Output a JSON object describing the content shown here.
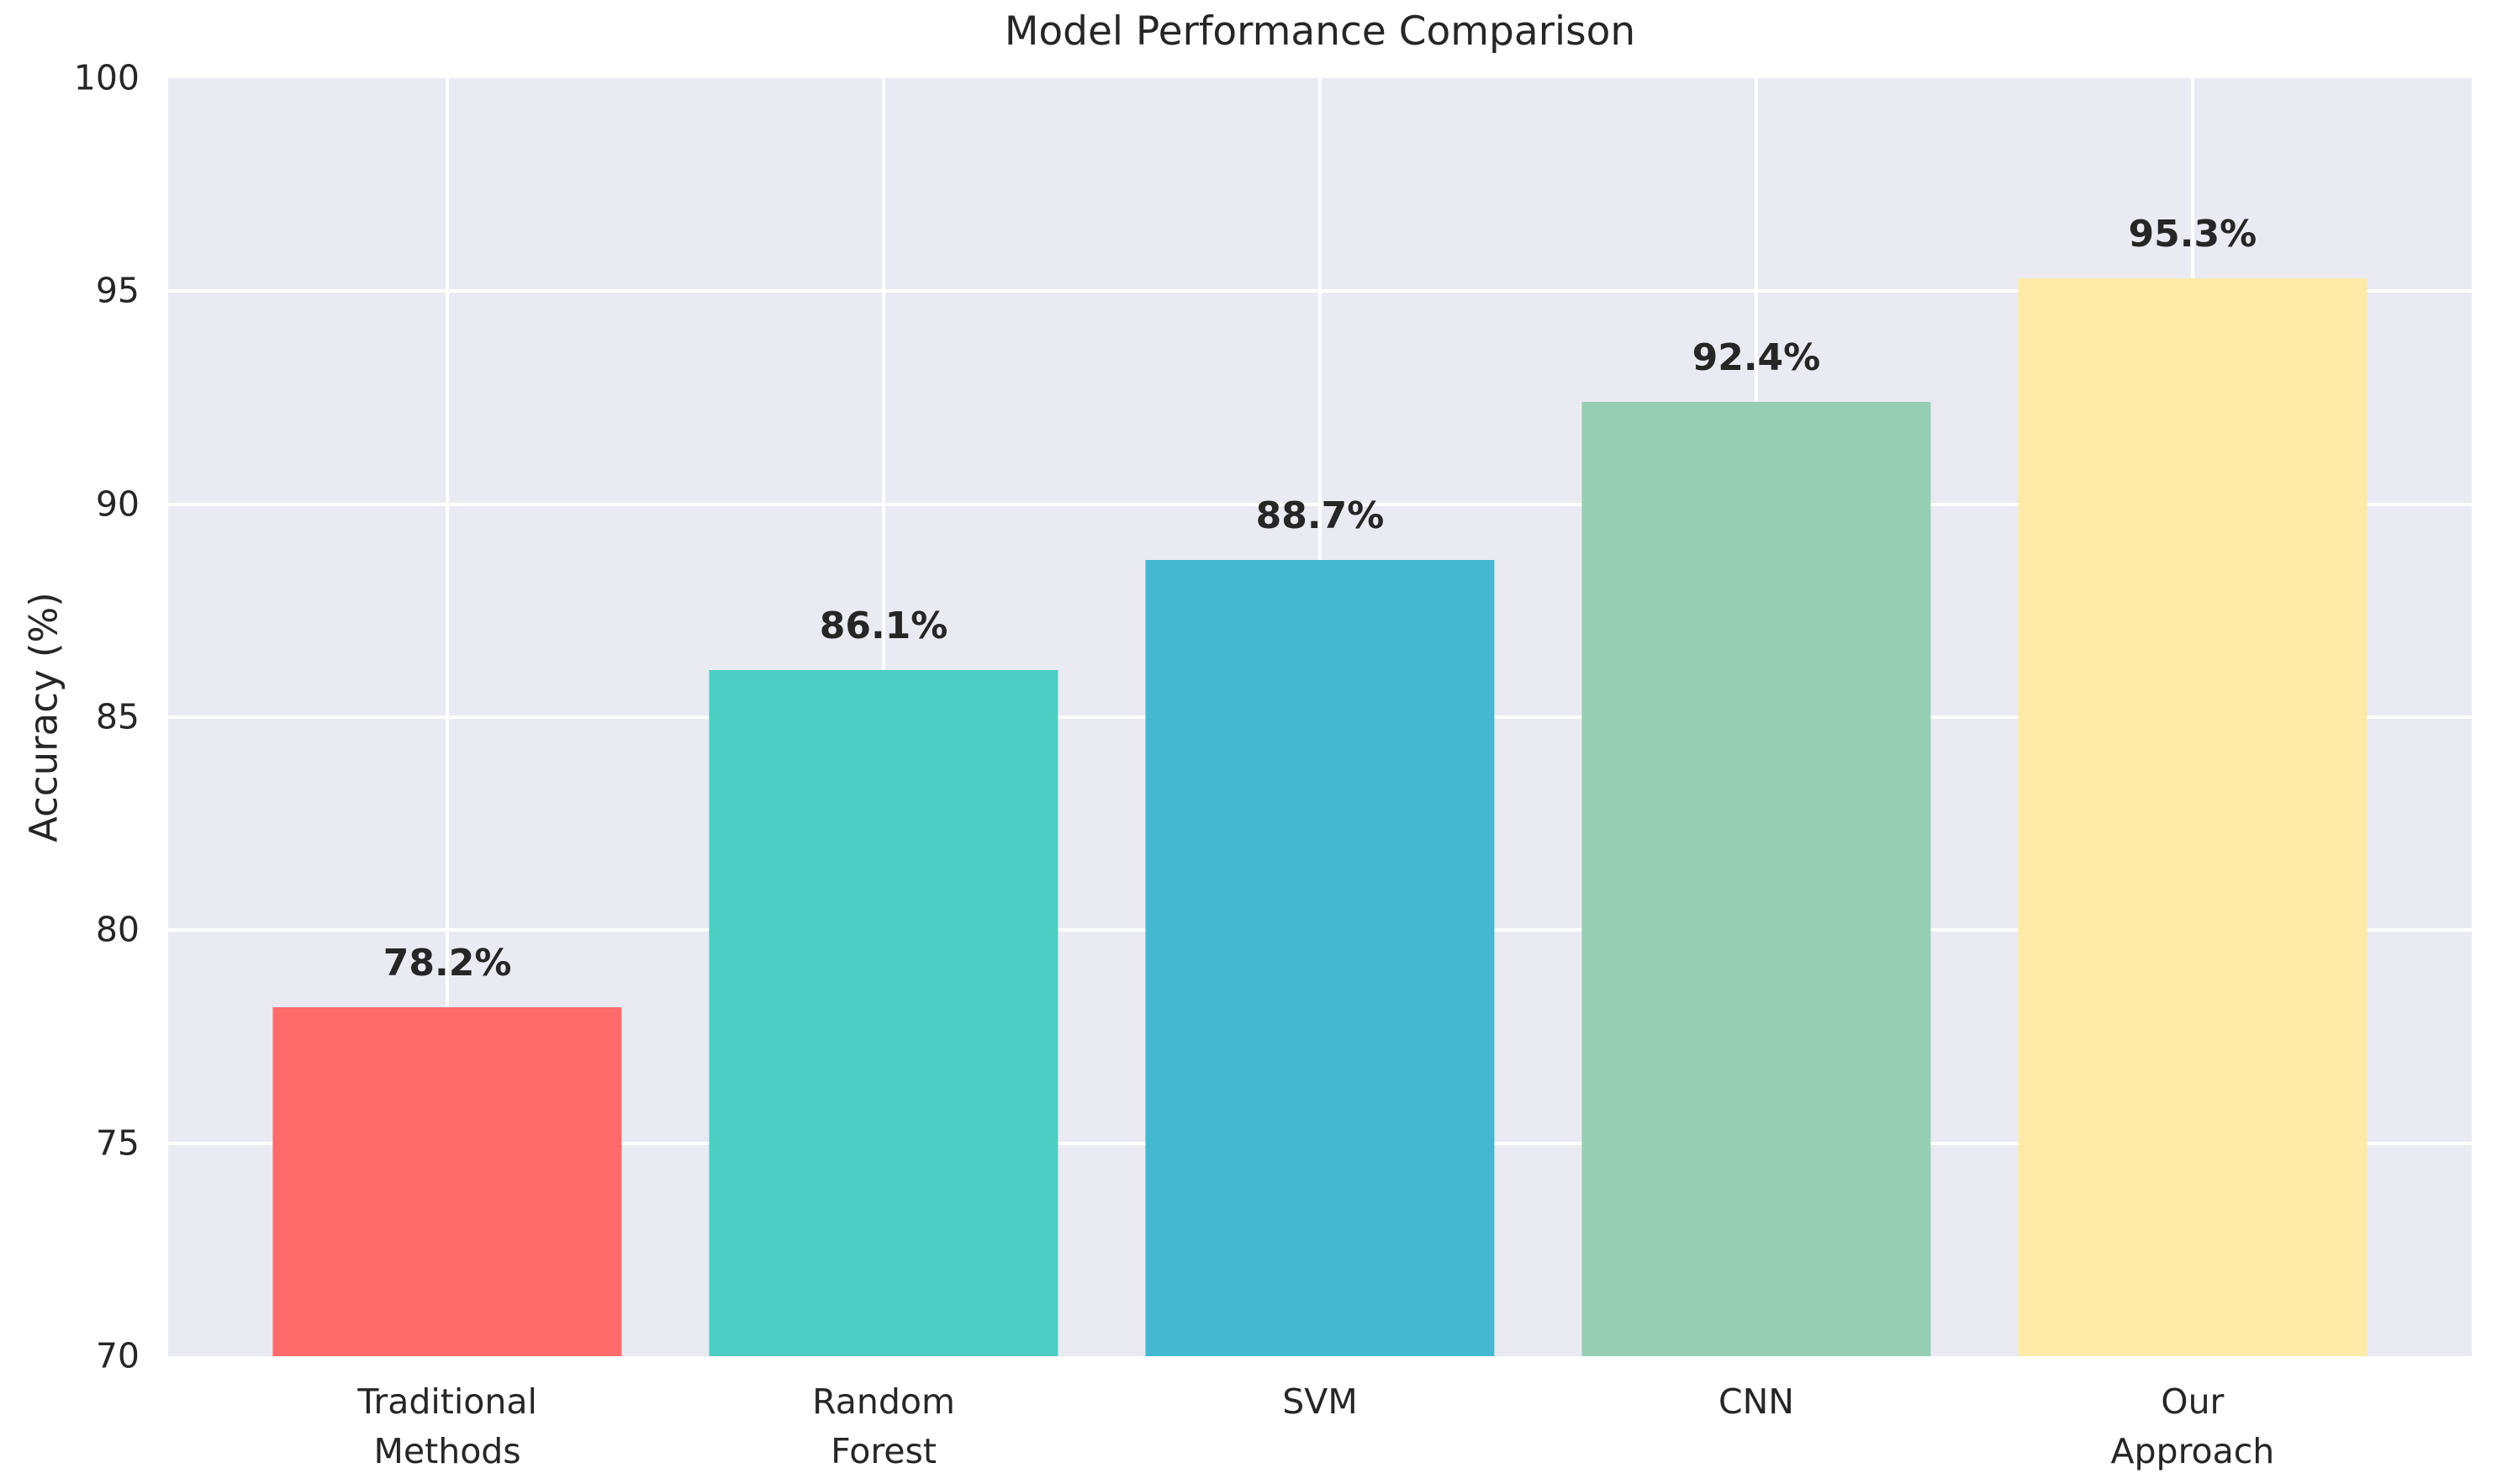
{
  "chart_data": {
    "type": "bar",
    "title": "Model Performance Comparison",
    "xlabel": "",
    "ylabel": "Accuracy (%)",
    "categories": [
      "Traditional\nMethods",
      "Random\nForest",
      "SVM",
      "CNN",
      "Our\nApproach"
    ],
    "values": [
      78.2,
      86.1,
      88.7,
      92.4,
      95.3
    ],
    "value_labels": [
      "78.2%",
      "86.1%",
      "88.7%",
      "92.4%",
      "95.3%"
    ],
    "bar_colors": [
      "#FF6B6B",
      "#4ECDC4",
      "#45B7D1",
      "#96CEB4",
      "#FFEAA7"
    ],
    "ylim": [
      70,
      100
    ],
    "yticks": [
      70,
      75,
      80,
      85,
      90,
      95,
      100
    ],
    "grid": true,
    "legend": "none",
    "panel_bg": "#EAEAF2",
    "grid_color": "#FFFFFF",
    "text_color": "#262626"
  }
}
